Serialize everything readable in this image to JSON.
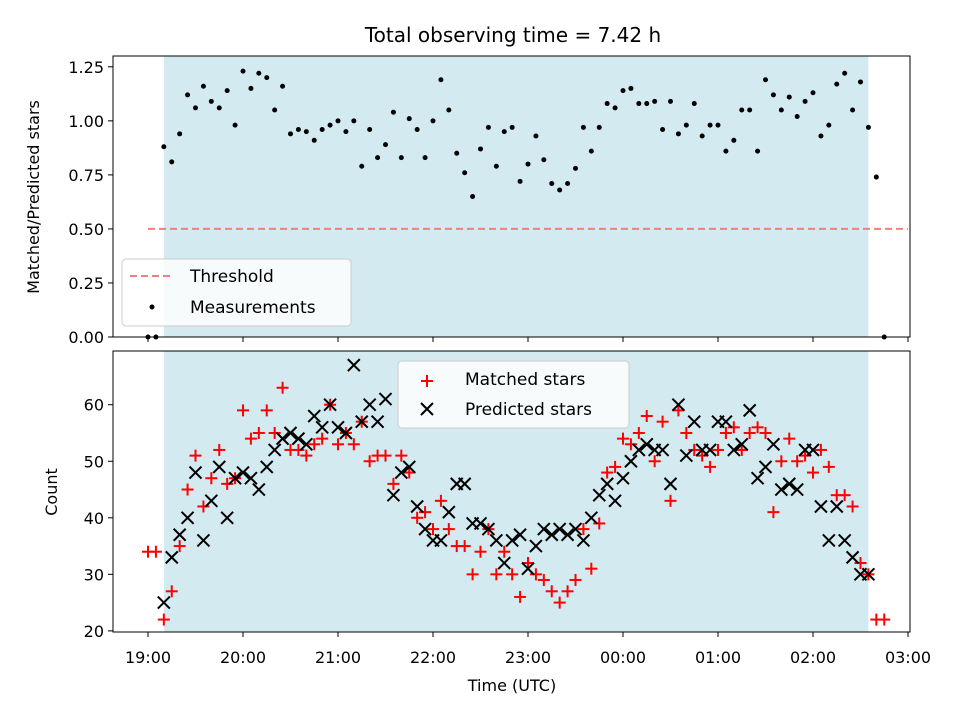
{
  "figure": {
    "title": "Total observing time = 7.42 h"
  },
  "colors": {
    "observing_window": "#d4eaf1",
    "threshold": "#f08080",
    "measurement": "#000000",
    "matched": "#ff0000",
    "predicted": "#000000"
  },
  "chart_data": [
    {
      "type": "scatter",
      "panel": "top",
      "title": "Total observing time = 7.42 h",
      "xlabel": "",
      "ylabel": "Matched/Predicted stars",
      "ylim": [
        0.0,
        1.3
      ],
      "yticks": [
        "0.00",
        "0.25",
        "0.50",
        "0.75",
        "1.00",
        "1.25"
      ],
      "observing_window": [
        "19:10",
        "02:35"
      ],
      "threshold": {
        "name": "Threshold",
        "value": 0.5,
        "x_range": [
          "19:00",
          "03:00"
        ]
      },
      "legend": {
        "position": "lower-left",
        "entries": [
          "Threshold",
          "Measurements"
        ]
      },
      "series": [
        {
          "name": "Measurements",
          "x": [
            "19:00",
            "19:05",
            "19:10",
            "19:15",
            "19:20",
            "19:25",
            "19:30",
            "19:35",
            "19:40",
            "19:45",
            "19:50",
            "19:55",
            "20:00",
            "20:05",
            "20:10",
            "20:15",
            "20:20",
            "20:25",
            "20:30",
            "20:35",
            "20:40",
            "20:45",
            "20:50",
            "20:55",
            "21:00",
            "21:05",
            "21:10",
            "21:15",
            "21:20",
            "21:25",
            "21:30",
            "21:35",
            "21:40",
            "21:45",
            "21:50",
            "21:55",
            "22:00",
            "22:05",
            "22:10",
            "22:15",
            "22:20",
            "22:25",
            "22:30",
            "22:35",
            "22:40",
            "22:45",
            "22:50",
            "22:55",
            "23:00",
            "23:05",
            "23:10",
            "23:15",
            "23:20",
            "23:25",
            "23:30",
            "23:35",
            "23:40",
            "23:45",
            "23:50",
            "23:55",
            "00:00",
            "00:05",
            "00:10",
            "00:15",
            "00:20",
            "00:25",
            "00:30",
            "00:35",
            "00:40",
            "00:45",
            "00:50",
            "00:55",
            "01:00",
            "01:05",
            "01:10",
            "01:15",
            "01:20",
            "01:25",
            "01:30",
            "01:35",
            "01:40",
            "01:45",
            "01:50",
            "01:55",
            "02:00",
            "02:05",
            "02:10",
            "02:15",
            "02:20",
            "02:25",
            "02:30",
            "02:35",
            "02:40",
            "02:45"
          ],
          "values": [
            0.0,
            0.0,
            0.88,
            0.81,
            0.94,
            1.12,
            1.06,
            1.16,
            1.09,
            1.06,
            1.14,
            0.98,
            1.23,
            1.15,
            1.22,
            1.2,
            1.05,
            1.16,
            0.94,
            0.96,
            0.95,
            0.91,
            0.96,
            0.98,
            1.0,
            0.95,
            1.0,
            0.79,
            0.96,
            0.83,
            0.89,
            1.04,
            0.83,
            1.01,
            0.96,
            0.83,
            1.0,
            1.19,
            1.05,
            0.85,
            0.76,
            0.65,
            0.87,
            0.97,
            0.79,
            0.95,
            0.97,
            0.72,
            0.8,
            0.93,
            0.82,
            0.71,
            0.68,
            0.71,
            0.78,
            0.97,
            0.86,
            0.97,
            1.08,
            1.06,
            1.14,
            1.15,
            1.08,
            1.08,
            1.09,
            0.96,
            1.09,
            0.94,
            0.98,
            1.08,
            0.93,
            0.98,
            0.98,
            0.86,
            0.91,
            1.05,
            1.05,
            0.86,
            1.19,
            1.12,
            1.05,
            1.11,
            1.02,
            1.09,
            1.13,
            0.93,
            0.98,
            1.17,
            1.22,
            1.05,
            1.18,
            0.97,
            0.74,
            0.0
          ]
        }
      ]
    },
    {
      "type": "scatter",
      "panel": "bottom",
      "xlabel": "Time (UTC)",
      "ylabel": "Count",
      "ylim": [
        19.8,
        69.5
      ],
      "yticks": [
        "20",
        "30",
        "40",
        "50",
        "60"
      ],
      "xticks": [
        "19:00",
        "20:00",
        "21:00",
        "22:00",
        "23:00",
        "00:00",
        "01:00",
        "02:00",
        "03:00"
      ],
      "observing_window": [
        "19:10",
        "02:35"
      ],
      "legend": {
        "position": "upper-center",
        "entries": [
          "Matched stars",
          "Predicted stars"
        ]
      },
      "series": [
        {
          "name": "Matched stars",
          "marker": "plus",
          "x": [
            "19:00",
            "19:05",
            "19:10",
            "19:15",
            "19:20",
            "19:25",
            "19:30",
            "19:35",
            "19:40",
            "19:45",
            "19:50",
            "19:55",
            "20:00",
            "20:05",
            "20:10",
            "20:15",
            "20:20",
            "20:25",
            "20:30",
            "20:35",
            "20:40",
            "20:45",
            "20:50",
            "20:55",
            "21:00",
            "21:05",
            "21:10",
            "21:15",
            "21:20",
            "21:25",
            "21:30",
            "21:35",
            "21:40",
            "21:45",
            "21:50",
            "21:55",
            "22:00",
            "22:05",
            "22:10",
            "22:15",
            "22:20",
            "22:25",
            "22:30",
            "22:35",
            "22:40",
            "22:45",
            "22:50",
            "22:55",
            "23:00",
            "23:05",
            "23:10",
            "23:15",
            "23:20",
            "23:25",
            "23:30",
            "23:35",
            "23:40",
            "23:45",
            "23:50",
            "23:55",
            "00:00",
            "00:05",
            "00:10",
            "00:15",
            "00:20",
            "00:25",
            "00:30",
            "00:35",
            "00:40",
            "00:45",
            "00:50",
            "00:55",
            "01:00",
            "01:05",
            "01:10",
            "01:15",
            "01:20",
            "01:25",
            "01:30",
            "01:35",
            "01:40",
            "01:45",
            "01:50",
            "01:55",
            "02:00",
            "02:05",
            "02:10",
            "02:15",
            "02:20",
            "02:25",
            "02:30",
            "02:35",
            "02:40",
            "02:45"
          ],
          "values": [
            34,
            34,
            22,
            27,
            35,
            45,
            51,
            42,
            47,
            52,
            46,
            47,
            59,
            54,
            55,
            59,
            55,
            63,
            52,
            52,
            51,
            53,
            54,
            60,
            53,
            55,
            53,
            57,
            50,
            51,
            51,
            46,
            51,
            48,
            40,
            41,
            38,
            43,
            38,
            35,
            35,
            30,
            34,
            38,
            30,
            34,
            30,
            26,
            32,
            30,
            29,
            27,
            25,
            27,
            29,
            38,
            31,
            39,
            48,
            49,
            54,
            53,
            55,
            58,
            50,
            57,
            43,
            59,
            55,
            52,
            51,
            49,
            52,
            55,
            56,
            52,
            55,
            56,
            55,
            41,
            50,
            54,
            50,
            51,
            48,
            52,
            49,
            44,
            44,
            42,
            32,
            30,
            22,
            22
          ]
        },
        {
          "name": "Predicted stars",
          "marker": "x",
          "x": [
            "19:10",
            "19:15",
            "19:20",
            "19:25",
            "19:30",
            "19:35",
            "19:40",
            "19:45",
            "19:50",
            "19:55",
            "20:00",
            "20:05",
            "20:10",
            "20:15",
            "20:20",
            "20:25",
            "20:30",
            "20:35",
            "20:40",
            "20:45",
            "20:50",
            "20:55",
            "21:00",
            "21:05",
            "21:10",
            "21:15",
            "21:20",
            "21:25",
            "21:30",
            "21:35",
            "21:40",
            "21:45",
            "21:50",
            "21:55",
            "22:00",
            "22:05",
            "22:10",
            "22:15",
            "22:20",
            "22:25",
            "22:30",
            "22:35",
            "22:40",
            "22:45",
            "22:50",
            "22:55",
            "23:00",
            "23:05",
            "23:10",
            "23:15",
            "23:20",
            "23:25",
            "23:30",
            "23:35",
            "23:40",
            "23:45",
            "23:50",
            "23:55",
            "00:00",
            "00:05",
            "00:10",
            "00:15",
            "00:20",
            "00:25",
            "00:30",
            "00:35",
            "00:40",
            "00:45",
            "00:50",
            "00:55",
            "01:00",
            "01:05",
            "01:10",
            "01:15",
            "01:20",
            "01:25",
            "01:30",
            "01:35",
            "01:40",
            "01:45",
            "01:50",
            "01:55",
            "02:00",
            "02:05",
            "02:10",
            "02:15",
            "02:20",
            "02:25",
            "02:30",
            "02:35"
          ],
          "values": [
            25,
            33,
            37,
            40,
            48,
            36,
            43,
            49,
            40,
            47,
            48,
            47,
            45,
            49,
            52,
            54,
            55,
            54,
            53,
            58,
            56,
            60,
            56,
            55,
            67,
            57,
            60,
            57,
            61,
            44,
            48,
            49,
            42,
            38,
            36,
            36,
            41,
            46,
            46,
            39,
            39,
            38,
            36,
            32,
            36,
            37,
            31,
            35,
            38,
            37,
            38,
            37,
            38,
            36,
            40,
            44,
            46,
            43,
            47,
            50,
            52,
            53,
            52,
            52,
            46,
            60,
            51,
            57,
            52,
            52,
            57,
            57,
            52,
            53,
            59,
            47,
            49,
            53,
            45,
            46,
            45,
            52,
            52,
            42,
            36,
            42,
            36,
            33,
            30,
            30
          ]
        }
      ]
    }
  ]
}
